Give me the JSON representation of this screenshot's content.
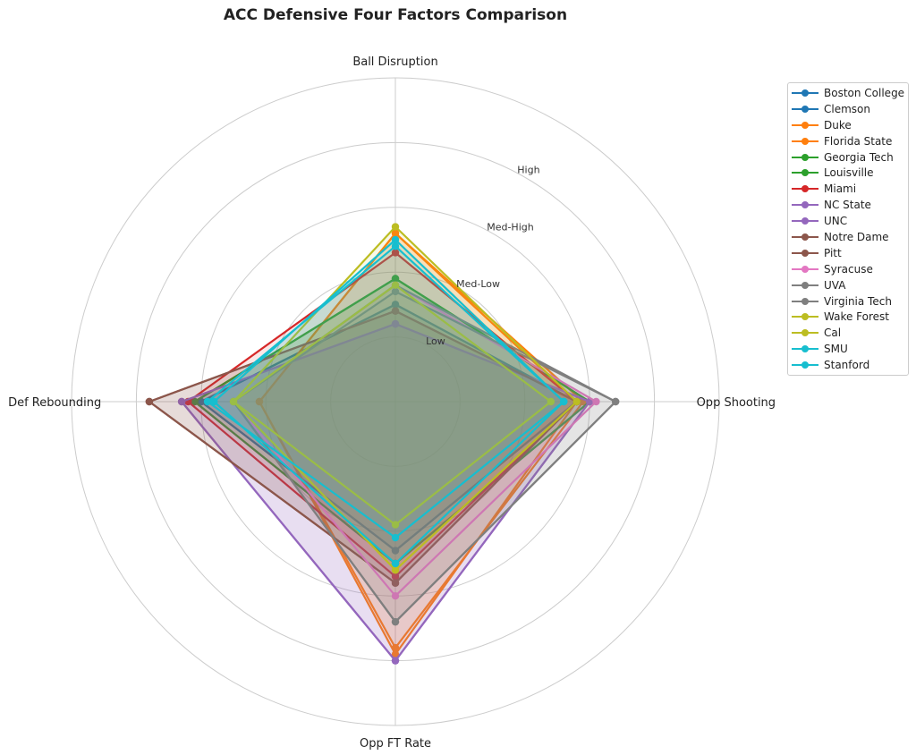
{
  "chart_data": {
    "type": "radar",
    "title": "ACC Defensive Four Factors Comparison",
    "axes": [
      "Ball Disruption",
      "Opp Shooting",
      "Opp FT Rate",
      "Def Rebounding"
    ],
    "ring_labels": [
      "Low",
      "Med-Low",
      "Med-High",
      "High"
    ],
    "rlim": [
      0,
      5
    ],
    "grid": true,
    "legend_position": "top-right",
    "series": [
      {
        "name": "Boston College",
        "color": "#1f77b4",
        "values": [
          1.5,
          2.8,
          2.3,
          3.0
        ]
      },
      {
        "name": "Clemson",
        "color": "#1f77b4",
        "values": [
          1.5,
          2.8,
          2.3,
          3.0
        ]
      },
      {
        "name": "Duke",
        "color": "#ff7f0e",
        "values": [
          2.6,
          2.8,
          3.9,
          2.1
        ]
      },
      {
        "name": "Florida State",
        "color": "#ff7f0e",
        "values": [
          2.6,
          2.9,
          3.8,
          2.1
        ]
      },
      {
        "name": "Georgia Tech",
        "color": "#2ca02c",
        "values": [
          1.9,
          3.0,
          2.5,
          3.1
        ]
      },
      {
        "name": "Louisville",
        "color": "#2ca02c",
        "values": [
          1.9,
          3.0,
          2.5,
          3.1
        ]
      },
      {
        "name": "Miami",
        "color": "#d62728",
        "values": [
          2.3,
          2.8,
          2.7,
          3.2
        ]
      },
      {
        "name": "NC State",
        "color": "#9467bd",
        "values": [
          1.2,
          3.0,
          4.0,
          3.3
        ]
      },
      {
        "name": "UNC",
        "color": "#9467bd",
        "values": [
          1.2,
          3.0,
          4.0,
          3.3
        ]
      },
      {
        "name": "Notre Dame",
        "color": "#8c564b",
        "values": [
          1.4,
          2.8,
          2.8,
          3.8
        ]
      },
      {
        "name": "Pitt",
        "color": "#8c564b",
        "values": [
          1.4,
          2.8,
          2.8,
          3.8
        ]
      },
      {
        "name": "Syracuse",
        "color": "#e377c2",
        "values": [
          1.8,
          3.1,
          3.0,
          2.5
        ]
      },
      {
        "name": "UVA",
        "color": "#7f7f7f",
        "values": [
          1.8,
          3.4,
          3.4,
          2.5
        ]
      },
      {
        "name": "Virginia Tech",
        "color": "#7f7f7f",
        "values": [
          1.7,
          3.4,
          3.4,
          2.5
        ]
      },
      {
        "name": "Wake Forest",
        "color": "#bcbd22",
        "values": [
          2.7,
          2.8,
          2.6,
          2.5
        ]
      },
      {
        "name": "Cal",
        "color": "#bcbd22",
        "values": [
          1.8,
          2.4,
          1.9,
          2.5
        ]
      },
      {
        "name": "SMU",
        "color": "#17becf",
        "values": [
          2.4,
          2.6,
          2.1,
          2.9
        ]
      },
      {
        "name": "Stanford",
        "color": "#17becf",
        "values": [
          2.5,
          2.6,
          2.5,
          2.8
        ]
      }
    ]
  }
}
